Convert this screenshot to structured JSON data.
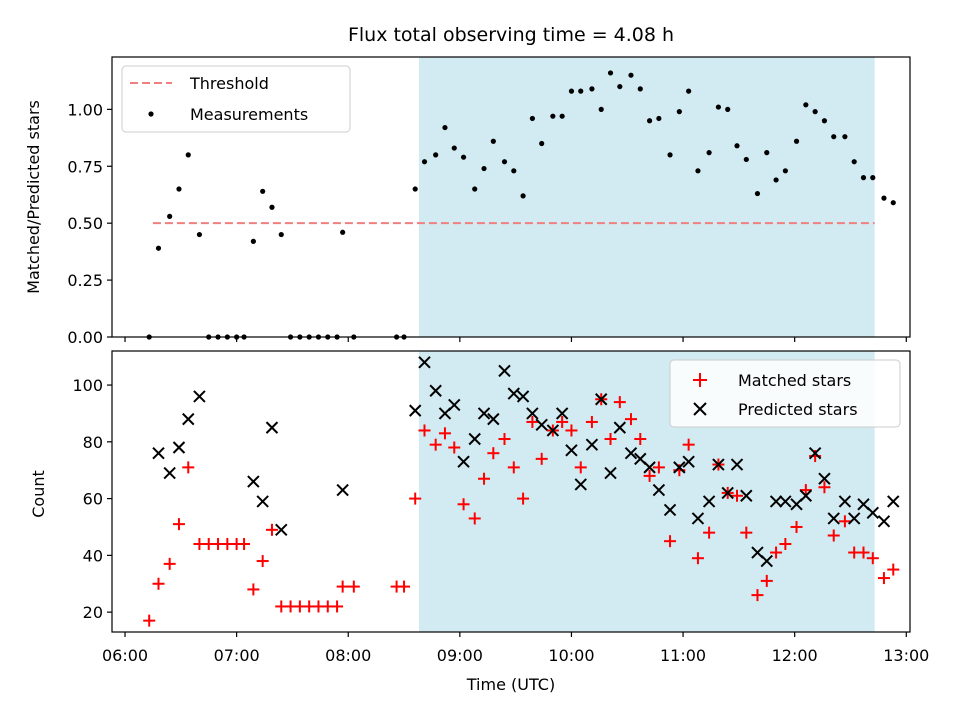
{
  "chart_data": [
    {
      "type": "scatter",
      "title": "Flux total observing time = 4.08 h",
      "ylabel": "Matched/Predicted stars",
      "xlim": [
        "06:00",
        "13:00"
      ],
      "ylim": [
        0,
        1.23
      ],
      "yticks": [
        "0.00",
        "0.25",
        "0.50",
        "0.75",
        "1.00"
      ],
      "ytick_values": [
        0,
        0.25,
        0.5,
        0.75,
        1.0
      ],
      "grid": false,
      "legend": "top-left",
      "shaded_span": {
        "start": "08:38",
        "end": "12:43",
        "color": "#add8e6"
      },
      "threshold": {
        "name": "Threshold",
        "value": 0.5,
        "start": "06:15",
        "end": "12:43",
        "color": "#f08080",
        "style": "dashed"
      },
      "series": [
        {
          "name": "Measurements",
          "color": "#000000",
          "marker": "dot",
          "points": [
            [
              "06:13",
              0.0
            ],
            [
              "06:18",
              0.39
            ],
            [
              "06:24",
              0.53
            ],
            [
              "06:29",
              0.65
            ],
            [
              "06:34",
              0.8
            ],
            [
              "06:40",
              0.45
            ],
            [
              "06:45",
              0.0
            ],
            [
              "06:50",
              0.0
            ],
            [
              "06:55",
              0.0
            ],
            [
              "07:00",
              0.0
            ],
            [
              "07:04",
              0.0
            ],
            [
              "07:09",
              0.42
            ],
            [
              "07:14",
              0.64
            ],
            [
              "07:19",
              0.57
            ],
            [
              "07:24",
              0.45
            ],
            [
              "07:29",
              0.0
            ],
            [
              "07:34",
              0.0
            ],
            [
              "07:39",
              0.0
            ],
            [
              "07:44",
              0.0
            ],
            [
              "07:49",
              0.0
            ],
            [
              "07:54",
              0.0
            ],
            [
              "07:57",
              0.46
            ],
            [
              "08:03",
              0.0
            ],
            [
              "08:26",
              0.0
            ],
            [
              "08:30",
              0.0
            ],
            [
              "08:36",
              0.65
            ],
            [
              "08:41",
              0.77
            ],
            [
              "08:47",
              0.8
            ],
            [
              "08:52",
              0.92
            ],
            [
              "08:57",
              0.83
            ],
            [
              "09:02",
              0.79
            ],
            [
              "09:08",
              0.65
            ],
            [
              "09:13",
              0.74
            ],
            [
              "09:18",
              0.86
            ],
            [
              "09:24",
              0.77
            ],
            [
              "09:29",
              0.73
            ],
            [
              "09:34",
              0.62
            ],
            [
              "09:39",
              0.96
            ],
            [
              "09:44",
              0.85
            ],
            [
              "09:50",
              0.97
            ],
            [
              "09:55",
              0.97
            ],
            [
              "10:00",
              1.08
            ],
            [
              "10:05",
              1.08
            ],
            [
              "10:11",
              1.09
            ],
            [
              "10:16",
              1.0
            ],
            [
              "10:21",
              1.16
            ],
            [
              "10:26",
              1.1
            ],
            [
              "10:32",
              1.15
            ],
            [
              "10:37",
              1.09
            ],
            [
              "10:42",
              0.95
            ],
            [
              "10:47",
              0.96
            ],
            [
              "10:53",
              0.8
            ],
            [
              "10:58",
              0.99
            ],
            [
              "11:03",
              1.08
            ],
            [
              "11:08",
              0.73
            ],
            [
              "11:14",
              0.81
            ],
            [
              "11:19",
              1.01
            ],
            [
              "11:24",
              1.0
            ],
            [
              "11:29",
              0.84
            ],
            [
              "11:34",
              0.78
            ],
            [
              "11:40",
              0.63
            ],
            [
              "11:45",
              0.81
            ],
            [
              "11:50",
              0.69
            ],
            [
              "11:55",
              0.73
            ],
            [
              "12:01",
              0.86
            ],
            [
              "12:06",
              1.02
            ],
            [
              "12:11",
              0.99
            ],
            [
              "12:16",
              0.95
            ],
            [
              "12:21",
              0.88
            ],
            [
              "12:27",
              0.88
            ],
            [
              "12:32",
              0.77
            ],
            [
              "12:37",
              0.7
            ],
            [
              "12:42",
              0.7
            ],
            [
              "12:48",
              0.61
            ],
            [
              "12:53",
              0.59
            ]
          ]
        }
      ]
    },
    {
      "type": "scatter",
      "xlabel": "Time (UTC)",
      "ylabel": "Count",
      "xlim": [
        "06:00",
        "13:00"
      ],
      "xticks": [
        "06:00",
        "07:00",
        "08:00",
        "09:00",
        "10:00",
        "11:00",
        "12:00",
        "13:00"
      ],
      "ylim": [
        13,
        112
      ],
      "yticks": [
        "20",
        "40",
        "60",
        "80",
        "100"
      ],
      "ytick_values": [
        20,
        40,
        60,
        80,
        100
      ],
      "grid": false,
      "legend": "top-right",
      "shaded_span": {
        "start": "08:38",
        "end": "12:43",
        "color": "#add8e6"
      },
      "series": [
        {
          "name": "Matched stars",
          "color": "#ff0000",
          "marker": "plus",
          "points": [
            [
              "06:13",
              17
            ],
            [
              "06:18",
              30
            ],
            [
              "06:24",
              37
            ],
            [
              "06:29",
              51
            ],
            [
              "06:34",
              71
            ],
            [
              "06:40",
              44
            ],
            [
              "06:45",
              44
            ],
            [
              "06:50",
              44
            ],
            [
              "06:55",
              44
            ],
            [
              "07:00",
              44
            ],
            [
              "07:04",
              44
            ],
            [
              "07:09",
              28
            ],
            [
              "07:14",
              38
            ],
            [
              "07:19",
              49
            ],
            [
              "07:24",
              22
            ],
            [
              "07:29",
              22
            ],
            [
              "07:34",
              22
            ],
            [
              "07:39",
              22
            ],
            [
              "07:44",
              22
            ],
            [
              "07:49",
              22
            ],
            [
              "07:54",
              22
            ],
            [
              "07:57",
              29
            ],
            [
              "08:03",
              29
            ],
            [
              "08:26",
              29
            ],
            [
              "08:30",
              29
            ],
            [
              "08:36",
              60
            ],
            [
              "08:41",
              84
            ],
            [
              "08:47",
              79
            ],
            [
              "08:52",
              83
            ],
            [
              "08:57",
              78
            ],
            [
              "09:02",
              58
            ],
            [
              "09:08",
              53
            ],
            [
              "09:13",
              67
            ],
            [
              "09:18",
              76
            ],
            [
              "09:24",
              81
            ],
            [
              "09:29",
              71
            ],
            [
              "09:34",
              60
            ],
            [
              "09:39",
              87
            ],
            [
              "09:44",
              74
            ],
            [
              "09:50",
              84
            ],
            [
              "09:55",
              87
            ],
            [
              "10:00",
              84
            ],
            [
              "10:05",
              71
            ],
            [
              "10:11",
              87
            ],
            [
              "10:16",
              95
            ],
            [
              "10:21",
              81
            ],
            [
              "10:26",
              94
            ],
            [
              "10:32",
              88
            ],
            [
              "10:37",
              81
            ],
            [
              "10:42",
              68
            ],
            [
              "10:47",
              71
            ],
            [
              "10:53",
              45
            ],
            [
              "10:58",
              70
            ],
            [
              "11:03",
              79
            ],
            [
              "11:08",
              39
            ],
            [
              "11:14",
              48
            ],
            [
              "11:19",
              72
            ],
            [
              "11:24",
              62
            ],
            [
              "11:29",
              61
            ],
            [
              "11:34",
              48
            ],
            [
              "11:40",
              26
            ],
            [
              "11:45",
              31
            ],
            [
              "11:50",
              41
            ],
            [
              "11:55",
              44
            ],
            [
              "12:01",
              50
            ],
            [
              "12:06",
              63
            ],
            [
              "12:11",
              75
            ],
            [
              "12:16",
              64
            ],
            [
              "12:21",
              47
            ],
            [
              "12:27",
              52
            ],
            [
              "12:32",
              41
            ],
            [
              "12:37",
              41
            ],
            [
              "12:42",
              39
            ],
            [
              "12:48",
              32
            ],
            [
              "12:53",
              35
            ]
          ]
        },
        {
          "name": "Predicted stars",
          "color": "#000000",
          "marker": "x",
          "points": [
            [
              "06:18",
              76
            ],
            [
              "06:24",
              69
            ],
            [
              "06:29",
              78
            ],
            [
              "06:34",
              88
            ],
            [
              "06:40",
              96
            ],
            [
              "07:09",
              66
            ],
            [
              "07:14",
              59
            ],
            [
              "07:19",
              85
            ],
            [
              "07:24",
              49
            ],
            [
              "07:57",
              63
            ],
            [
              "08:36",
              91
            ],
            [
              "08:41",
              108
            ],
            [
              "08:47",
              98
            ],
            [
              "08:52",
              90
            ],
            [
              "08:57",
              93
            ],
            [
              "09:02",
              73
            ],
            [
              "09:08",
              81
            ],
            [
              "09:13",
              90
            ],
            [
              "09:18",
              88
            ],
            [
              "09:24",
              105
            ],
            [
              "09:29",
              97
            ],
            [
              "09:34",
              96
            ],
            [
              "09:39",
              90
            ],
            [
              "09:44",
              86
            ],
            [
              "09:50",
              84
            ],
            [
              "09:55",
              90
            ],
            [
              "10:00",
              77
            ],
            [
              "10:05",
              65
            ],
            [
              "10:11",
              79
            ],
            [
              "10:16",
              95
            ],
            [
              "10:21",
              69
            ],
            [
              "10:26",
              85
            ],
            [
              "10:32",
              76
            ],
            [
              "10:37",
              74
            ],
            [
              "10:42",
              71
            ],
            [
              "10:47",
              63
            ],
            [
              "10:53",
              56
            ],
            [
              "10:58",
              71
            ],
            [
              "11:03",
              73
            ],
            [
              "11:08",
              53
            ],
            [
              "11:14",
              59
            ],
            [
              "11:19",
              72
            ],
            [
              "11:24",
              62
            ],
            [
              "11:29",
              72
            ],
            [
              "11:34",
              61
            ],
            [
              "11:40",
              41
            ],
            [
              "11:45",
              38
            ],
            [
              "11:50",
              59
            ],
            [
              "11:55",
              59
            ],
            [
              "12:01",
              58
            ],
            [
              "12:06",
              61
            ],
            [
              "12:11",
              76
            ],
            [
              "12:16",
              67
            ],
            [
              "12:21",
              53
            ],
            [
              "12:27",
              59
            ],
            [
              "12:32",
              53
            ],
            [
              "12:37",
              58
            ],
            [
              "12:42",
              55
            ],
            [
              "12:48",
              52
            ],
            [
              "12:53",
              59
            ]
          ]
        }
      ]
    }
  ]
}
